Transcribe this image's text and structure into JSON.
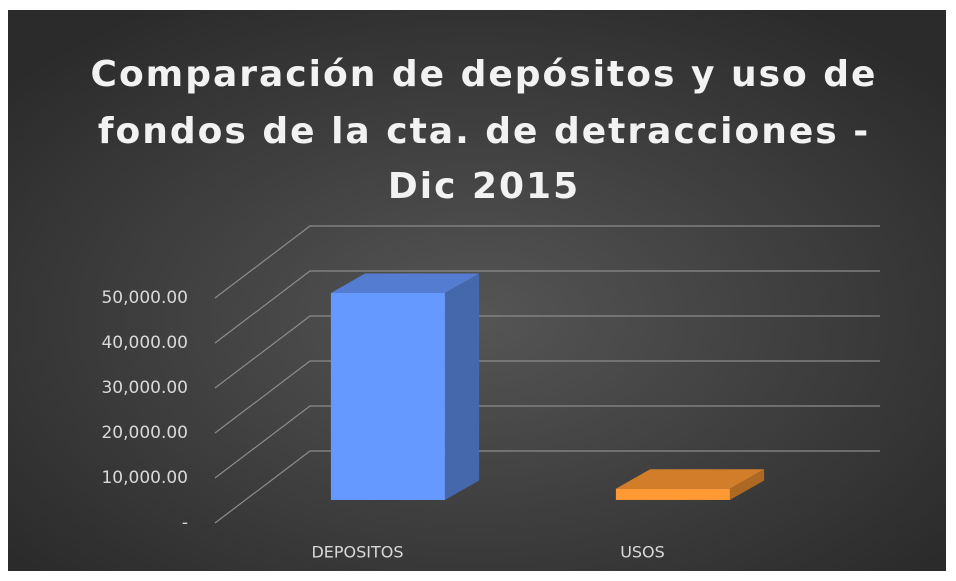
{
  "chart_data": {
    "type": "bar3d",
    "title": [
      "Comparación de depósitos y uso de",
      "fondos de la cta. de detracciones -",
      "Dic 2015"
    ],
    "categories": [
      "DEPOSITOS",
      "USOS"
    ],
    "values": [
      46000,
      2500
    ],
    "colors": [
      "#6699ff",
      "#ff9933"
    ],
    "ylim": [
      0,
      50000
    ],
    "yticks": [
      {
        "value": 0,
        "label": "-"
      },
      {
        "value": 10000,
        "label": "10,000.00"
      },
      {
        "value": 20000,
        "label": "20,000.00"
      },
      {
        "value": 30000,
        "label": "30,000.00"
      },
      {
        "value": 40000,
        "label": "40,000.00"
      },
      {
        "value": 50000,
        "label": "50,000.00"
      }
    ],
    "grid": true
  }
}
